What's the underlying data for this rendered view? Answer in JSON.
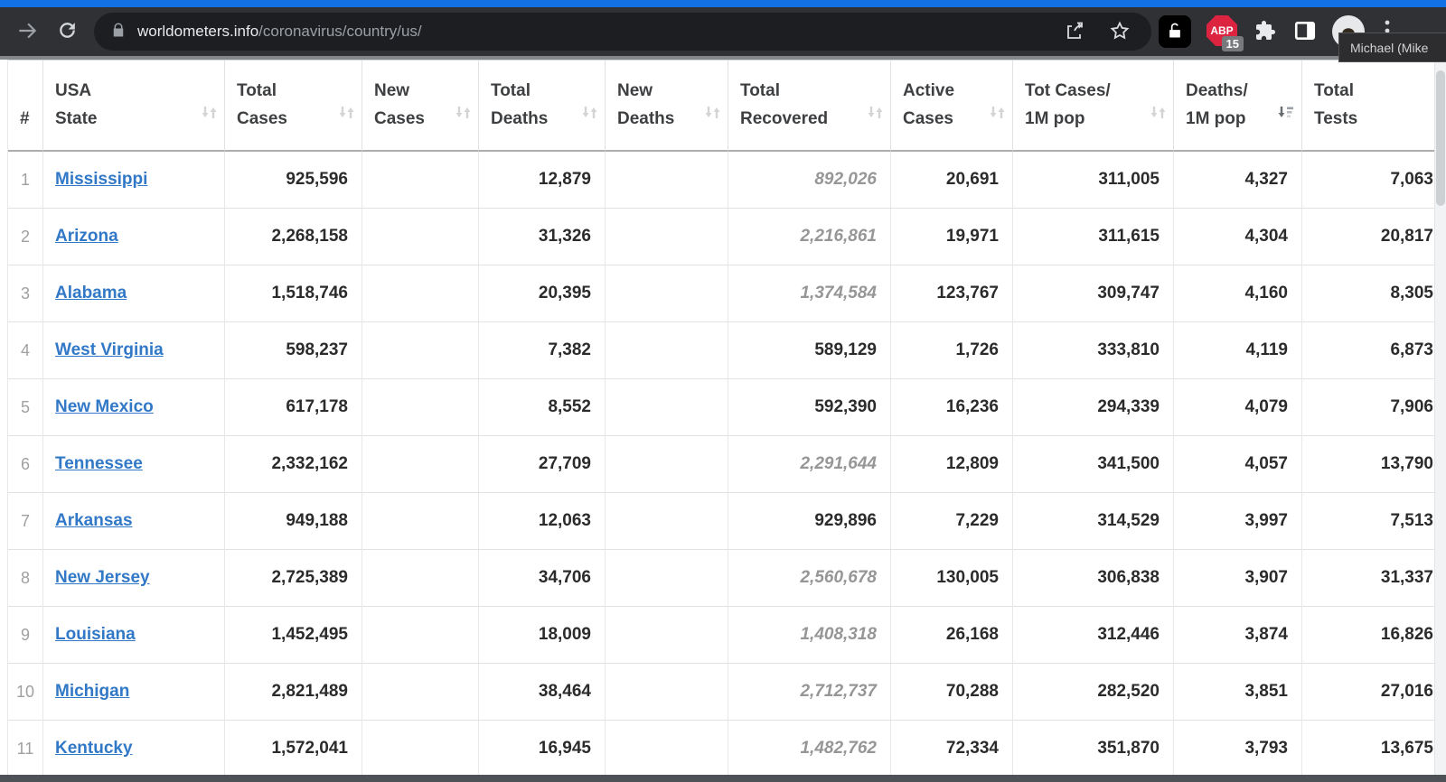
{
  "browser": {
    "url": {
      "domain": "worldometers.info",
      "path": "/coronavirus/country/us/"
    },
    "profile_tooltip": "Michael (Mike",
    "adblock": {
      "label": "ABP",
      "badge": "15"
    },
    "icons": [
      "forward-icon",
      "reload-icon",
      "site-lock-icon",
      "share-icon",
      "bookmark-star-icon",
      "lock-extension-icon",
      "adblock-icon",
      "extensions-puzzle-icon",
      "side-panel-icon",
      "profile-avatar",
      "menu-dots-icon"
    ]
  },
  "table": {
    "columns": [
      {
        "id": "rank",
        "line1": "#",
        "line2": "",
        "sort": "none",
        "sortable": false
      },
      {
        "id": "state",
        "line1": "USA",
        "line2": "State",
        "sort": "both",
        "sortable": true
      },
      {
        "id": "total-cases",
        "line1": "Total",
        "line2": "Cases",
        "sort": "both",
        "sortable": true
      },
      {
        "id": "new-cases",
        "line1": "New",
        "line2": "Cases",
        "sort": "both",
        "sortable": true
      },
      {
        "id": "total-deaths",
        "line1": "Total",
        "line2": "Deaths",
        "sort": "both",
        "sortable": true
      },
      {
        "id": "new-deaths",
        "line1": "New",
        "line2": "Deaths",
        "sort": "both",
        "sortable": true
      },
      {
        "id": "total-recovered",
        "line1": "Total",
        "line2": "Recovered",
        "sort": "both",
        "sortable": true
      },
      {
        "id": "active-cases",
        "line1": "Active",
        "line2": "Cases",
        "sort": "both",
        "sortable": true
      },
      {
        "id": "tot-cases-1m",
        "line1": "Tot Cases/",
        "line2": "1M pop",
        "sort": "both",
        "sortable": true
      },
      {
        "id": "deaths-1m",
        "line1": "Deaths/",
        "line2": "1M pop",
        "sort": "desc",
        "sortable": true
      },
      {
        "id": "total-tests",
        "line1": "Total",
        "line2": "Tests",
        "sort": "none",
        "sortable": true
      }
    ],
    "sorted_by": "deaths-1m",
    "rows": [
      {
        "rank": "1",
        "state": "Mississippi",
        "total_cases": "925,596",
        "new_cases": "",
        "total_deaths": "12,879",
        "new_deaths": "",
        "total_recovered": "892,026",
        "recovered_estimated": true,
        "active_cases": "20,691",
        "tot_cases_1m": "311,005",
        "deaths_1m": "4,327",
        "total_tests": "7,063"
      },
      {
        "rank": "2",
        "state": "Arizona",
        "total_cases": "2,268,158",
        "new_cases": "",
        "total_deaths": "31,326",
        "new_deaths": "",
        "total_recovered": "2,216,861",
        "recovered_estimated": true,
        "active_cases": "19,971",
        "tot_cases_1m": "311,615",
        "deaths_1m": "4,304",
        "total_tests": "20,817"
      },
      {
        "rank": "3",
        "state": "Alabama",
        "total_cases": "1,518,746",
        "new_cases": "",
        "total_deaths": "20,395",
        "new_deaths": "",
        "total_recovered": "1,374,584",
        "recovered_estimated": true,
        "active_cases": "123,767",
        "tot_cases_1m": "309,747",
        "deaths_1m": "4,160",
        "total_tests": "8,305"
      },
      {
        "rank": "4",
        "state": "West Virginia",
        "total_cases": "598,237",
        "new_cases": "",
        "total_deaths": "7,382",
        "new_deaths": "",
        "total_recovered": "589,129",
        "recovered_estimated": false,
        "active_cases": "1,726",
        "tot_cases_1m": "333,810",
        "deaths_1m": "4,119",
        "total_tests": "6,873"
      },
      {
        "rank": "5",
        "state": "New Mexico",
        "total_cases": "617,178",
        "new_cases": "",
        "total_deaths": "8,552",
        "new_deaths": "",
        "total_recovered": "592,390",
        "recovered_estimated": false,
        "active_cases": "16,236",
        "tot_cases_1m": "294,339",
        "deaths_1m": "4,079",
        "total_tests": "7,906"
      },
      {
        "rank": "6",
        "state": "Tennessee",
        "total_cases": "2,332,162",
        "new_cases": "",
        "total_deaths": "27,709",
        "new_deaths": "",
        "total_recovered": "2,291,644",
        "recovered_estimated": true,
        "active_cases": "12,809",
        "tot_cases_1m": "341,500",
        "deaths_1m": "4,057",
        "total_tests": "13,790"
      },
      {
        "rank": "7",
        "state": "Arkansas",
        "total_cases": "949,188",
        "new_cases": "",
        "total_deaths": "12,063",
        "new_deaths": "",
        "total_recovered": "929,896",
        "recovered_estimated": false,
        "active_cases": "7,229",
        "tot_cases_1m": "314,529",
        "deaths_1m": "3,997",
        "total_tests": "7,513"
      },
      {
        "rank": "8",
        "state": "New Jersey",
        "total_cases": "2,725,389",
        "new_cases": "",
        "total_deaths": "34,706",
        "new_deaths": "",
        "total_recovered": "2,560,678",
        "recovered_estimated": true,
        "active_cases": "130,005",
        "tot_cases_1m": "306,838",
        "deaths_1m": "3,907",
        "total_tests": "31,337"
      },
      {
        "rank": "9",
        "state": "Louisiana",
        "total_cases": "1,452,495",
        "new_cases": "",
        "total_deaths": "18,009",
        "new_deaths": "",
        "total_recovered": "1,408,318",
        "recovered_estimated": true,
        "active_cases": "26,168",
        "tot_cases_1m": "312,446",
        "deaths_1m": "3,874",
        "total_tests": "16,826"
      },
      {
        "rank": "10",
        "state": "Michigan",
        "total_cases": "2,821,489",
        "new_cases": "",
        "total_deaths": "38,464",
        "new_deaths": "",
        "total_recovered": "2,712,737",
        "recovered_estimated": true,
        "active_cases": "70,288",
        "tot_cases_1m": "282,520",
        "deaths_1m": "3,851",
        "total_tests": "27,016"
      },
      {
        "rank": "11",
        "state": "Kentucky",
        "total_cases": "1,572,041",
        "new_cases": "",
        "total_deaths": "16,945",
        "new_deaths": "",
        "total_recovered": "1,482,762",
        "recovered_estimated": true,
        "active_cases": "72,334",
        "tot_cases_1m": "351,870",
        "deaths_1m": "3,793",
        "total_tests": "13,675"
      }
    ]
  }
}
